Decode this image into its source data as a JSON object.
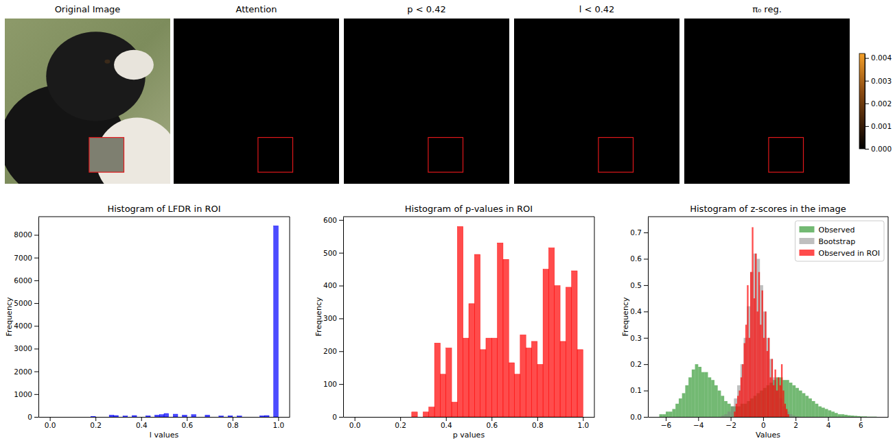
{
  "chart_data": [
    {
      "type": "image",
      "title": "Original Image"
    },
    {
      "type": "heatmap",
      "title": "Attention"
    },
    {
      "type": "heatmap",
      "title": "p < 0.42"
    },
    {
      "type": "heatmap",
      "title": "l < 0.42"
    },
    {
      "type": "heatmap",
      "title": "π₀ reg."
    },
    {
      "type": "colorbar",
      "ylim": [
        0,
        0.0042
      ],
      "yticks": [
        {
          "value": 0,
          "label": "0.000"
        },
        {
          "value": 0.001,
          "label": "0.001"
        },
        {
          "value": 0.002,
          "label": "0.002"
        },
        {
          "value": 0.003,
          "label": "0.003"
        },
        {
          "value": 0.004,
          "label": "0.004"
        }
      ]
    },
    {
      "type": "histogram",
      "title": "Histogram of LFDR in ROI",
      "x_label": "l values",
      "y_label": "Frequency",
      "color": "blue",
      "bins": [
        0,
        0.02,
        0.04,
        0.06,
        0.08,
        0.1,
        0.12,
        0.14,
        0.16,
        0.18,
        0.2,
        0.22,
        0.24,
        0.26,
        0.28,
        0.3,
        0.32,
        0.34,
        0.36,
        0.38,
        0.4,
        0.42,
        0.44,
        0.46,
        0.48,
        0.5,
        0.52,
        0.54,
        0.56,
        0.58,
        0.6,
        0.62,
        0.64,
        0.66,
        0.68,
        0.7,
        0.72,
        0.74,
        0.76,
        0.78,
        0.8,
        0.82,
        0.84,
        0.86,
        0.88,
        0.9,
        0.92,
        0.94,
        0.96,
        0.98,
        1.0
      ],
      "values": [
        0,
        0,
        0,
        0,
        0,
        0,
        0,
        0,
        0,
        20,
        0,
        0,
        0,
        80,
        60,
        0,
        40,
        0,
        60,
        0,
        0,
        50,
        0,
        80,
        100,
        150,
        0,
        120,
        0,
        80,
        0,
        100,
        0,
        0,
        80,
        0,
        0,
        40,
        0,
        50,
        0,
        40,
        0,
        0,
        0,
        0,
        50,
        60,
        0,
        8400
      ],
      "xlim": [
        -0.05,
        1.05
      ],
      "ylim": [
        0,
        8800
      ],
      "xticks": [
        {
          "value": 0,
          "label": "0.0"
        },
        {
          "value": 0.2,
          "label": "0.2"
        },
        {
          "value": 0.4,
          "label": "0.4"
        },
        {
          "value": 0.6,
          "label": "0.6"
        },
        {
          "value": 0.8,
          "label": "0.8"
        },
        {
          "value": 1,
          "label": "1.0"
        }
      ],
      "yticks": [
        0,
        1000,
        2000,
        3000,
        4000,
        5000,
        6000,
        7000,
        8000
      ]
    },
    {
      "type": "histogram",
      "title": "Histogram of p-values in ROI",
      "x_label": "p values",
      "y_label": "Frequency",
      "color": "red",
      "bins": [
        0,
        0.025,
        0.05,
        0.075,
        0.1,
        0.125,
        0.15,
        0.175,
        0.2,
        0.225,
        0.25,
        0.275,
        0.3,
        0.325,
        0.35,
        0.375,
        0.4,
        0.425,
        0.45,
        0.475,
        0.5,
        0.525,
        0.55,
        0.575,
        0.6,
        0.625,
        0.65,
        0.675,
        0.7,
        0.725,
        0.75,
        0.775,
        0.8,
        0.825,
        0.85,
        0.875,
        0.9,
        0.925,
        0.95,
        0.975,
        1.0
      ],
      "values": [
        0,
        0,
        0,
        0,
        0,
        0,
        0,
        0,
        0,
        0,
        15,
        0,
        15,
        30,
        225,
        130,
        210,
        45,
        580,
        240,
        345,
        495,
        205,
        240,
        240,
        530,
        480,
        165,
        130,
        250,
        210,
        230,
        160,
        450,
        515,
        400,
        230,
        395,
        445,
        205
      ],
      "xlim": [
        -0.05,
        1.05
      ],
      "ylim": [
        0,
        610
      ],
      "xticks": [
        {
          "value": 0,
          "label": "0.0"
        },
        {
          "value": 0.2,
          "label": "0.2"
        },
        {
          "value": 0.4,
          "label": "0.4"
        },
        {
          "value": 0.6,
          "label": "0.6"
        },
        {
          "value": 0.8,
          "label": "0.8"
        },
        {
          "value": 1,
          "label": "1.0"
        }
      ],
      "yticks": [
        0,
        100,
        200,
        300,
        400,
        500,
        600
      ]
    },
    {
      "type": "histogram",
      "title": "Histogram of z-scores in the image",
      "x_label": "Values",
      "y_label": "Frequency",
      "legend": "upper right",
      "series": [
        {
          "name": "Observed",
          "color": "green",
          "bins": [
            -6.4,
            -6.2,
            -6.0,
            -5.8,
            -5.6,
            -5.4,
            -5.2,
            -5.0,
            -4.8,
            -4.6,
            -4.4,
            -4.2,
            -4.0,
            -3.8,
            -3.6,
            -3.4,
            -3.2,
            -3.0,
            -2.8,
            -2.6,
            -2.4,
            -2.2,
            -2.0,
            -1.8,
            -1.6,
            -1.4,
            -1.2,
            -1.0,
            -0.8,
            -0.6,
            -0.4,
            -0.2,
            0.0,
            0.2,
            0.4,
            0.6,
            0.8,
            1.0,
            1.2,
            1.4,
            1.6,
            1.8,
            2.0,
            2.2,
            2.4,
            2.6,
            2.8,
            3.0,
            3.2,
            3.4,
            3.6,
            3.8,
            4.0,
            4.2,
            4.4,
            4.6,
            4.8,
            5.0,
            5.2,
            5.4,
            5.6,
            5.8,
            6.0,
            6.2,
            6.4,
            6.6,
            6.8,
            7.0
          ],
          "values": [
            0.01,
            0.01,
            0.02,
            0.02,
            0.03,
            0.05,
            0.07,
            0.09,
            0.12,
            0.15,
            0.18,
            0.2,
            0.19,
            0.17,
            0.17,
            0.15,
            0.14,
            0.12,
            0.1,
            0.08,
            0.06,
            0.05,
            0.04,
            0.04,
            0.04,
            0.05,
            0.05,
            0.06,
            0.07,
            0.08,
            0.09,
            0.1,
            0.11,
            0.12,
            0.13,
            0.14,
            0.15,
            0.15,
            0.14,
            0.14,
            0.13,
            0.12,
            0.11,
            0.1,
            0.09,
            0.08,
            0.07,
            0.06,
            0.05,
            0.04,
            0.035,
            0.03,
            0.025,
            0.02,
            0.015,
            0.01,
            0.01,
            0.008,
            0.006,
            0.005,
            0.004,
            0.003,
            0.002,
            0.002,
            0.001,
            0.001,
            0.001
          ]
        },
        {
          "name": "Bootstrap",
          "color": "gray",
          "bins": [
            -2.6,
            -2.4,
            -2.2,
            -2.0,
            -1.8,
            -1.6,
            -1.4,
            -1.2,
            -1.0,
            -0.8,
            -0.6,
            -0.4,
            -0.2,
            0.0,
            0.2,
            0.4,
            0.6,
            0.8,
            1.0,
            1.2,
            1.4,
            1.6,
            1.8,
            2.0,
            2.2
          ],
          "values": [
            0.005,
            0.01,
            0.02,
            0.04,
            0.07,
            0.12,
            0.2,
            0.3,
            0.42,
            0.55,
            0.62,
            0.6,
            0.5,
            0.4,
            0.3,
            0.22,
            0.15,
            0.1,
            0.07,
            0.04,
            0.02,
            0.01,
            0.005,
            0.002
          ]
        },
        {
          "name": "Observed in ROI",
          "color": "red",
          "bins": [
            -1.8,
            -1.7,
            -1.6,
            -1.5,
            -1.4,
            -1.3,
            -1.2,
            -1.1,
            -1.0,
            -0.9,
            -0.8,
            -0.7,
            -0.6,
            -0.5,
            -0.4,
            -0.3,
            -0.2,
            -0.1,
            0.0,
            0.1,
            0.2,
            0.3,
            0.4,
            0.5,
            0.6,
            0.7,
            0.8,
            0.9,
            1.0,
            1.1,
            1.2,
            1.3,
            1.4,
            1.5,
            1.6
          ],
          "values": [
            0.02,
            0.05,
            0.08,
            0.1,
            0.15,
            0.2,
            0.28,
            0.35,
            0.5,
            0.3,
            0.55,
            0.72,
            0.45,
            0.62,
            0.4,
            0.55,
            0.35,
            0.48,
            0.3,
            0.4,
            0.25,
            0.3,
            0.15,
            0.22,
            0.12,
            0.18,
            0.1,
            0.15,
            0.12,
            0.2,
            0.1,
            0.05,
            0.03,
            0.01
          ]
        }
      ],
      "xlim": [
        -7.1,
        7.7
      ],
      "ylim": [
        0,
        0.76
      ],
      "xticks": [
        {
          "value": -6,
          "label": "−6"
        },
        {
          "value": -4,
          "label": "−4"
        },
        {
          "value": -2,
          "label": "−2"
        },
        0,
        2,
        4,
        6
      ],
      "yticks": [
        {
          "value": 0,
          "label": "0.0"
        },
        {
          "value": 0.1,
          "label": "0.1"
        },
        {
          "value": 0.2,
          "label": "0.2"
        },
        {
          "value": 0.3,
          "label": "0.3"
        },
        {
          "value": 0.4,
          "label": "0.4"
        },
        {
          "value": 0.5,
          "label": "0.5"
        },
        {
          "value": 0.6,
          "label": "0.6"
        },
        {
          "value": 0.7,
          "label": "0.7"
        }
      ]
    }
  ]
}
